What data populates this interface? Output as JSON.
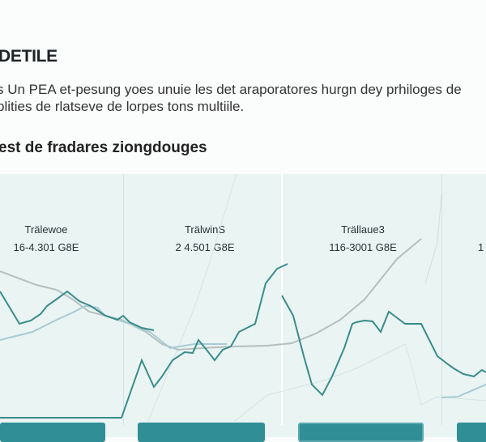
{
  "header": {
    "title": "DETILE",
    "description_lines": [
      "s Un PEA et-pesung yoes unuie les det araporatores hurgn dey prhiloges de",
      "plities de rlatseve de lorpes tons multiile."
    ],
    "subtitle": "est de fradares ziongdouges"
  },
  "panels": [
    {
      "label": "Trälewoe",
      "value": "16-4.301 G8E"
    },
    {
      "label": "TrälwinS",
      "value": "2 4.501 G8E"
    },
    {
      "label": "Trällaue3",
      "value": "116-3001 G8E"
    },
    {
      "label": "",
      "value": "1"
    }
  ],
  "colors": {
    "accent": "#2f8e96",
    "line_main": "#3a8c8a",
    "line_gray": "#b5bfbe",
    "line_blue": "#a9cbd3",
    "panel_bg": "#e9f4f3"
  }
}
